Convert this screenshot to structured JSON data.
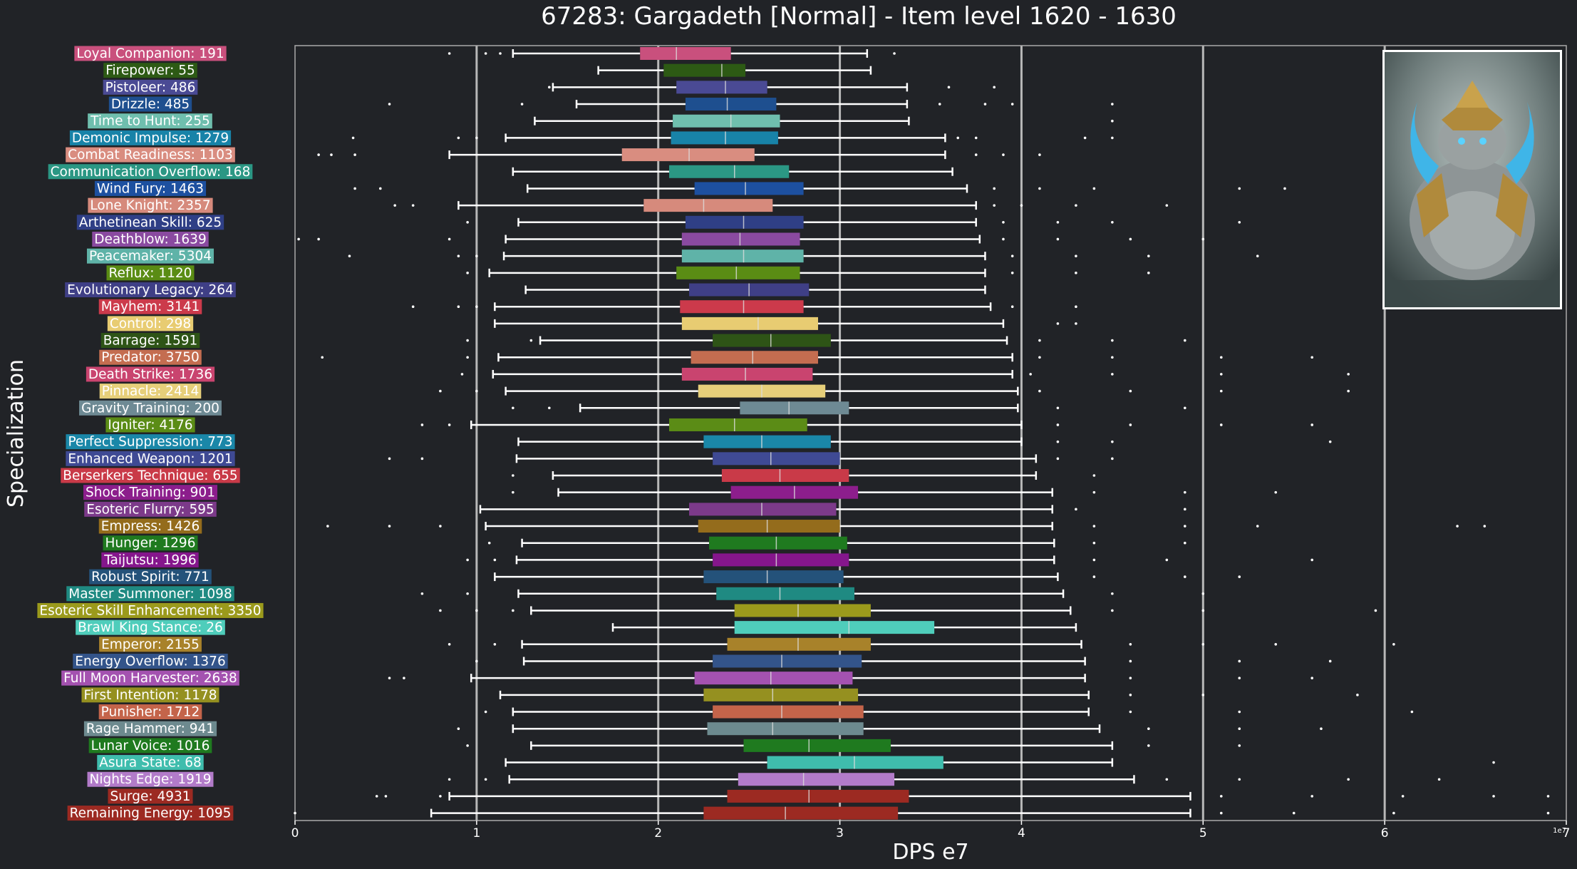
{
  "chart_data": {
    "type": "boxplot",
    "title": "67283: Gargadeth [Normal] - Item level 1620 - 1630",
    "xlabel": "DPS e7",
    "ylabel": "Specialization",
    "x_ticks": [
      "0",
      "1",
      "2",
      "3",
      "4",
      "5",
      "6",
      "7"
    ],
    "x_multiplier": "1e7",
    "xlim": [
      0,
      7
    ],
    "grid": "vertical",
    "background": "#212327",
    "series": [
      {
        "label": "Loyal Companion: 191",
        "color": "#c9507d",
        "wl": 1.2,
        "q1": 1.9,
        "med": 2.1,
        "q3": 2.4,
        "wh": 3.15,
        "outliers": [
          0.85,
          1.05,
          1.13,
          3.3
        ]
      },
      {
        "label": "Firepower: 55",
        "color": "#2d5a14",
        "wl": 1.67,
        "q1": 2.03,
        "med": 2.35,
        "q3": 2.48,
        "wh": 3.17,
        "outliers": []
      },
      {
        "label": "Pistoleer: 486",
        "color": "#4a4a94",
        "wl": 1.42,
        "q1": 2.1,
        "med": 2.37,
        "q3": 2.6,
        "wh": 3.37,
        "outliers": [
          1.4,
          3.6,
          3.85
        ]
      },
      {
        "label": "Drizzle: 485",
        "color": "#1e4f8f",
        "wl": 1.55,
        "q1": 2.15,
        "med": 2.38,
        "q3": 2.65,
        "wh": 3.37,
        "outliers": [
          0.52,
          1.25,
          3.55,
          3.8,
          3.95,
          4.5
        ]
      },
      {
        "label": "Time to Hunt: 255",
        "color": "#6fbfae",
        "wl": 1.32,
        "q1": 2.08,
        "med": 2.4,
        "q3": 2.67,
        "wh": 3.38,
        "outliers": [
          4.5
        ]
      },
      {
        "label": "Demonic Impulse: 1279",
        "color": "#1883a8",
        "wl": 1.16,
        "q1": 2.07,
        "med": 2.37,
        "q3": 2.66,
        "wh": 3.58,
        "outliers": [
          0.32,
          0.9,
          1.0,
          3.65,
          3.75,
          4.35,
          4.5
        ]
      },
      {
        "label": "Combat Readiness: 1103",
        "color": "#d98d80",
        "wl": 0.85,
        "q1": 1.8,
        "med": 2.17,
        "q3": 2.53,
        "wh": 3.58,
        "outliers": [
          0.13,
          0.2,
          0.33,
          3.75,
          3.9,
          4.1
        ]
      },
      {
        "label": "Communication Overflow: 168",
        "color": "#2b9784",
        "wl": 1.2,
        "q1": 2.06,
        "med": 2.42,
        "q3": 2.72,
        "wh": 3.62,
        "outliers": []
      },
      {
        "label": "Wind Fury: 1463",
        "color": "#1d50a0",
        "wl": 1.28,
        "q1": 2.2,
        "med": 2.48,
        "q3": 2.8,
        "wh": 3.7,
        "outliers": [
          0.33,
          0.47,
          3.85,
          4.1,
          4.4,
          5.2,
          5.45
        ]
      },
      {
        "label": "Lone Knight: 2357",
        "color": "#d68a7c",
        "wl": 0.9,
        "q1": 1.92,
        "med": 2.25,
        "q3": 2.63,
        "wh": 3.75,
        "outliers": [
          0.55,
          0.65,
          3.85,
          4.0,
          4.3,
          4.8
        ]
      },
      {
        "label": "Arthetinean Skill: 625",
        "color": "#2f3f86",
        "wl": 1.23,
        "q1": 2.15,
        "med": 2.47,
        "q3": 2.8,
        "wh": 3.75,
        "outliers": [
          0.95,
          3.9,
          4.2,
          4.5,
          5.2
        ]
      },
      {
        "label": "Deathblow: 1639",
        "color": "#8a4aa0",
        "wl": 1.16,
        "q1": 2.13,
        "med": 2.45,
        "q3": 2.78,
        "wh": 3.77,
        "outliers": [
          0.02,
          0.13,
          0.85,
          3.9,
          4.2,
          4.6,
          5.0
        ]
      },
      {
        "label": "Peacemaker: 5304",
        "color": "#5fb3a8",
        "wl": 1.15,
        "q1": 2.13,
        "med": 2.47,
        "q3": 2.8,
        "wh": 3.8,
        "outliers": [
          0.3,
          0.9,
          1.0,
          3.95,
          4.3,
          4.7,
          5.3
        ]
      },
      {
        "label": "Reflux: 1120",
        "color": "#5a8c14",
        "wl": 1.07,
        "q1": 2.1,
        "med": 2.43,
        "q3": 2.78,
        "wh": 3.8,
        "outliers": [
          0.95,
          3.95,
          4.3,
          4.7
        ]
      },
      {
        "label": "Evolutionary Legacy: 264",
        "color": "#3f3f86",
        "wl": 1.27,
        "q1": 2.17,
        "med": 2.5,
        "q3": 2.83,
        "wh": 3.8,
        "outliers": []
      },
      {
        "label": "Mayhem: 3141",
        "color": "#cc3a4b",
        "wl": 1.1,
        "q1": 2.12,
        "med": 2.47,
        "q3": 2.8,
        "wh": 3.83,
        "outliers": [
          0.65,
          0.9,
          1.0,
          3.95,
          4.3
        ]
      },
      {
        "label": "Control: 298",
        "color": "#e8cc72",
        "wl": 1.1,
        "q1": 2.13,
        "med": 2.55,
        "q3": 2.88,
        "wh": 3.9,
        "outliers": [
          4.2,
          4.3
        ]
      },
      {
        "label": "Barrage: 1591",
        "color": "#2e5416",
        "wl": 1.35,
        "q1": 2.3,
        "med": 2.62,
        "q3": 2.95,
        "wh": 3.92,
        "outliers": [
          0.95,
          1.3,
          4.1,
          4.5,
          4.9
        ]
      },
      {
        "label": "Predator: 3750",
        "color": "#c46d50",
        "wl": 1.12,
        "q1": 2.18,
        "med": 2.52,
        "q3": 2.88,
        "wh": 3.95,
        "outliers": [
          0.15,
          0.95,
          4.1,
          4.5,
          5.1,
          5.6
        ]
      },
      {
        "label": "Death Strike: 1736",
        "color": "#c9446f",
        "wl": 1.09,
        "q1": 2.13,
        "med": 2.48,
        "q3": 2.85,
        "wh": 3.95,
        "outliers": [
          0.92,
          4.05,
          4.5,
          5.1,
          5.8
        ]
      },
      {
        "label": "Pinnacle: 2414",
        "color": "#e6cf7a",
        "wl": 1.16,
        "q1": 2.22,
        "med": 2.57,
        "q3": 2.92,
        "wh": 3.98,
        "outliers": [
          0.8,
          1.0,
          4.1,
          4.6,
          5.1,
          5.8
        ]
      },
      {
        "label": "Gravity Training: 200",
        "color": "#6e8a94",
        "wl": 1.57,
        "q1": 2.45,
        "med": 2.72,
        "q3": 3.05,
        "wh": 3.98,
        "outliers": [
          1.2,
          1.4,
          4.2,
          4.9
        ]
      },
      {
        "label": "Igniter: 4176",
        "color": "#5b8c16",
        "wl": 0.97,
        "q1": 2.06,
        "med": 2.42,
        "q3": 2.82,
        "wh": 4.0,
        "outliers": [
          0.7,
          0.85,
          4.2,
          4.6,
          5.1,
          5.6
        ]
      },
      {
        "label": "Perfect Suppression: 773",
        "color": "#1a87a8",
        "wl": 1.23,
        "q1": 2.25,
        "med": 2.57,
        "q3": 2.95,
        "wh": 4.0,
        "outliers": [
          4.2,
          4.5,
          5.7
        ]
      },
      {
        "label": "Enhanced Weapon: 1201",
        "color": "#3f4a94",
        "wl": 1.22,
        "q1": 2.3,
        "med": 2.62,
        "q3": 3.0,
        "wh": 4.08,
        "outliers": [
          0.52,
          0.7,
          4.2,
          4.5
        ]
      },
      {
        "label": "Berserkers Technique: 655",
        "color": "#c93a48",
        "wl": 1.42,
        "q1": 2.35,
        "med": 2.67,
        "q3": 3.05,
        "wh": 4.08,
        "outliers": [
          1.2,
          4.4
        ]
      },
      {
        "label": "Shock Training: 901",
        "color": "#8c1e8c",
        "wl": 1.45,
        "q1": 2.4,
        "med": 2.75,
        "q3": 3.1,
        "wh": 4.17,
        "outliers": [
          1.2,
          4.4,
          4.9,
          5.4
        ]
      },
      {
        "label": "Esoteric Flurry: 595",
        "color": "#7c3a8a",
        "wl": 1.02,
        "q1": 2.17,
        "med": 2.57,
        "q3": 2.98,
        "wh": 4.17,
        "outliers": [
          4.3,
          4.9
        ]
      },
      {
        "label": "Empress: 1426",
        "color": "#946c1c",
        "wl": 1.05,
        "q1": 2.22,
        "med": 2.6,
        "q3": 3.0,
        "wh": 4.17,
        "outliers": [
          0.18,
          0.52,
          0.8,
          4.4,
          4.9,
          5.3,
          6.4,
          6.55
        ]
      },
      {
        "label": "Hunger: 1296",
        "color": "#1f7a1f",
        "wl": 1.25,
        "q1": 2.28,
        "med": 2.65,
        "q3": 3.04,
        "wh": 4.18,
        "outliers": [
          1.07,
          4.4,
          4.9
        ]
      },
      {
        "label": "Taijutsu: 1996",
        "color": "#85168c",
        "wl": 1.22,
        "q1": 2.3,
        "med": 2.65,
        "q3": 3.05,
        "wh": 4.18,
        "outliers": [
          0.95,
          1.1,
          4.4,
          4.8,
          5.6
        ]
      },
      {
        "label": "Robust Spirit: 771",
        "color": "#24527a",
        "wl": 1.1,
        "q1": 2.25,
        "med": 2.6,
        "q3": 3.02,
        "wh": 4.2,
        "outliers": [
          4.4,
          4.9,
          5.2
        ]
      },
      {
        "label": "Master Summoner: 1098",
        "color": "#1f8a82",
        "wl": 1.23,
        "q1": 2.32,
        "med": 2.67,
        "q3": 3.08,
        "wh": 4.23,
        "outliers": [
          0.7,
          0.95,
          4.5,
          5.0
        ]
      },
      {
        "label": "Esoteric Skill Enhancement: 3350",
        "color": "#9b9a1c",
        "wl": 1.3,
        "q1": 2.42,
        "med": 2.77,
        "q3": 3.17,
        "wh": 4.27,
        "outliers": [
          0.8,
          1.0,
          1.2,
          4.5,
          5.0,
          5.95
        ]
      },
      {
        "label": "Brawl King Stance: 26",
        "color": "#4fcdbb",
        "wl": 1.75,
        "q1": 2.42,
        "med": 3.05,
        "q3": 3.52,
        "wh": 4.3,
        "outliers": []
      },
      {
        "label": "Emperor: 2155",
        "color": "#a8822a",
        "wl": 1.25,
        "q1": 2.38,
        "med": 2.77,
        "q3": 3.17,
        "wh": 4.33,
        "outliers": [
          0.85,
          1.1,
          4.6,
          5.0,
          5.4,
          6.05
        ]
      },
      {
        "label": "Energy Overflow: 1376",
        "color": "#33548a",
        "wl": 1.26,
        "q1": 2.3,
        "med": 2.68,
        "q3": 3.12,
        "wh": 4.35,
        "outliers": [
          1.0,
          4.6,
          5.2,
          5.7
        ]
      },
      {
        "label": "Full Moon Harvester: 2638",
        "color": "#a452b0",
        "wl": 0.97,
        "q1": 2.2,
        "med": 2.62,
        "q3": 3.07,
        "wh": 4.35,
        "outliers": [
          0.52,
          0.6,
          4.6,
          5.2,
          5.6
        ]
      },
      {
        "label": "First Intention: 1178",
        "color": "#959020",
        "wl": 1.13,
        "q1": 2.25,
        "med": 2.63,
        "q3": 3.1,
        "wh": 4.37,
        "outliers": [
          4.6,
          5.0,
          5.85
        ]
      },
      {
        "label": "Punisher: 1712",
        "color": "#c4644a",
        "wl": 1.2,
        "q1": 2.3,
        "med": 2.68,
        "q3": 3.13,
        "wh": 4.37,
        "outliers": [
          1.05,
          4.6,
          5.2,
          6.15
        ]
      },
      {
        "label": "Rage Hammer: 941",
        "color": "#6d8a8f",
        "wl": 1.2,
        "q1": 2.27,
        "med": 2.63,
        "q3": 3.13,
        "wh": 4.43,
        "outliers": [
          0.9,
          4.7,
          5.2,
          5.65
        ]
      },
      {
        "label": "Lunar Voice: 1016",
        "color": "#1f7a1f",
        "wl": 1.3,
        "q1": 2.47,
        "med": 2.83,
        "q3": 3.28,
        "wh": 4.5,
        "outliers": [
          0.95,
          4.7,
          5.2
        ]
      },
      {
        "label": "Asura State: 68",
        "color": "#3fbdad",
        "wl": 1.16,
        "q1": 2.6,
        "med": 3.08,
        "q3": 3.57,
        "wh": 4.5,
        "outliers": [
          6.6
        ]
      },
      {
        "label": "Nights Edge: 1919",
        "color": "#b27bc9",
        "wl": 1.18,
        "q1": 2.44,
        "med": 2.8,
        "q3": 3.3,
        "wh": 4.62,
        "outliers": [
          0.85,
          1.05,
          4.8,
          5.2,
          5.8,
          6.3
        ]
      },
      {
        "label": "Surge: 4931",
        "color": "#9c2a22",
        "wl": 0.85,
        "q1": 2.38,
        "med": 2.83,
        "q3": 3.38,
        "wh": 4.93,
        "outliers": [
          0.45,
          0.5,
          0.8,
          5.1,
          5.6,
          6.1,
          6.6,
          6.9
        ]
      },
      {
        "label": "Remaining Energy: 1095",
        "color": "#9c2a22",
        "wl": 0.75,
        "q1": 2.25,
        "med": 2.7,
        "q3": 3.32,
        "wh": 4.93,
        "outliers": [
          0.0,
          5.1,
          5.5,
          6.05,
          6.9
        ]
      }
    ]
  }
}
